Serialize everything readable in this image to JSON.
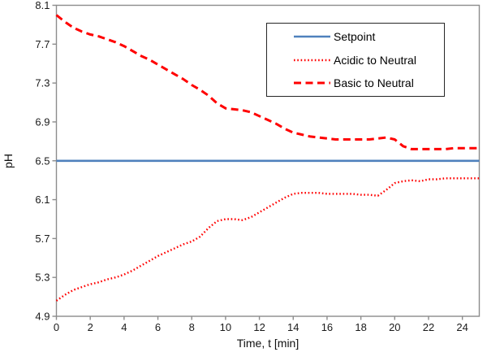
{
  "colors": {
    "axis_line": "#8c8c8c",
    "tick_text": "#1a1a1a",
    "legend_border": "#262626",
    "background": "#ffffff",
    "setpoint_blue": "#4F81BD",
    "series_red": "#FF0000"
  },
  "chart_data": {
    "type": "line",
    "title": "",
    "xlabel": "Time, t [min]",
    "ylabel": "pH",
    "xlim": [
      0,
      25
    ],
    "ylim": [
      4.9,
      8.1
    ],
    "x_ticks": [
      0,
      2,
      4,
      6,
      8,
      10,
      12,
      14,
      16,
      18,
      20,
      22,
      24
    ],
    "y_ticks": [
      4.9,
      5.3,
      5.7,
      6.1,
      6.5,
      6.9,
      7.3,
      7.7,
      8.1
    ],
    "grid": false,
    "legend_position": "inside-top-right",
    "series": [
      {
        "name": "Setpoint",
        "color": "#4F81BD",
        "style": "solid",
        "x": [
          0,
          25
        ],
        "values": [
          6.5,
          6.5
        ]
      },
      {
        "name": "Acidic to Neutral",
        "color": "#FF0000",
        "style": "dotted",
        "x": [
          0,
          0.5,
          1,
          1.5,
          2,
          2.5,
          3,
          3.5,
          4,
          4.5,
          5,
          5.5,
          6,
          6.5,
          7,
          7.5,
          8,
          8.5,
          9,
          9.5,
          10,
          10.5,
          11,
          11.5,
          12,
          12.5,
          13,
          13.5,
          14,
          14.5,
          15,
          15.5,
          16,
          16.5,
          17,
          17.5,
          18,
          18.5,
          19,
          19.5,
          20,
          20.5,
          21,
          21.5,
          22,
          22.5,
          23,
          23.5,
          24,
          24.5,
          25
        ],
        "values": [
          5.06,
          5.12,
          5.17,
          5.2,
          5.23,
          5.25,
          5.28,
          5.3,
          5.33,
          5.37,
          5.42,
          5.47,
          5.52,
          5.56,
          5.6,
          5.64,
          5.67,
          5.72,
          5.81,
          5.88,
          5.9,
          5.9,
          5.89,
          5.92,
          5.97,
          6.02,
          6.07,
          6.12,
          6.16,
          6.17,
          6.17,
          6.17,
          6.16,
          6.16,
          6.16,
          6.16,
          6.15,
          6.15,
          6.14,
          6.2,
          6.27,
          6.29,
          6.3,
          6.29,
          6.31,
          6.31,
          6.32,
          6.32,
          6.32,
          6.32,
          6.32
        ]
      },
      {
        "name": "Basic to Neutral",
        "color": "#FF0000",
        "style": "dashed",
        "x": [
          0,
          0.5,
          1,
          1.5,
          2,
          2.5,
          3,
          3.5,
          4,
          4.5,
          5,
          5.5,
          6,
          6.5,
          7,
          7.5,
          8,
          8.5,
          9,
          9.5,
          10,
          10.5,
          11,
          11.5,
          12,
          12.5,
          13,
          13.5,
          14,
          14.5,
          15,
          15.5,
          16,
          16.5,
          17,
          17.5,
          18,
          18.5,
          19,
          19.5,
          20,
          20.5,
          21,
          21.5,
          22,
          22.5,
          23,
          23.5,
          24,
          24.5,
          25
        ],
        "values": [
          8.0,
          7.93,
          7.87,
          7.83,
          7.8,
          7.78,
          7.75,
          7.72,
          7.68,
          7.63,
          7.58,
          7.54,
          7.49,
          7.44,
          7.39,
          7.34,
          7.28,
          7.23,
          7.17,
          7.09,
          7.04,
          7.03,
          7.02,
          7.0,
          6.96,
          6.92,
          6.88,
          6.83,
          6.79,
          6.77,
          6.75,
          6.74,
          6.73,
          6.72,
          6.72,
          6.72,
          6.72,
          6.72,
          6.73,
          6.74,
          6.72,
          6.65,
          6.62,
          6.62,
          6.62,
          6.62,
          6.62,
          6.63,
          6.63,
          6.63,
          6.63
        ]
      }
    ]
  }
}
